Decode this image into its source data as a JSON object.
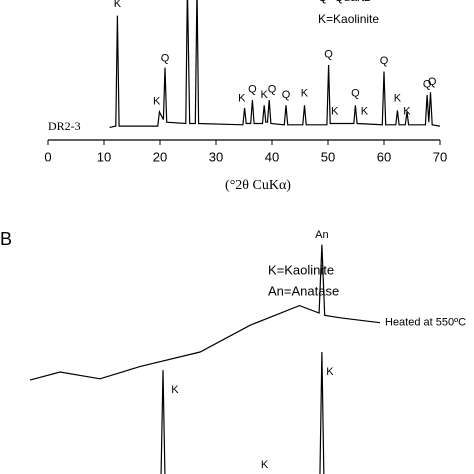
{
  "chart_data": [
    {
      "type": "line",
      "legend": [
        "Q=Quartz",
        "K=Kaolinite"
      ],
      "xlabel": "(°2θ CuKα)",
      "xlim": [
        0,
        70
      ],
      "ylim": [
        0,
        100
      ],
      "xticks": [
        0,
        10,
        20,
        30,
        40,
        50,
        60,
        70
      ],
      "series": [
        {
          "name": "DR2-3",
          "color": "#000000",
          "x": [
            11.0,
            12.1,
            12.4,
            12.7,
            19.6,
            19.9,
            20.6,
            20.9,
            21.2,
            24.6,
            24.9,
            25.3,
            26.3,
            26.6,
            26.9,
            34.8,
            35.1,
            35.4,
            36.2,
            36.5,
            36.8,
            38.3,
            38.6,
            38.9,
            39.2,
            39.5,
            39.8,
            42.2,
            42.5,
            42.8,
            45.5,
            45.8,
            46.1,
            49.8,
            50.1,
            50.4,
            54.6,
            54.9,
            55.2,
            59.7,
            60.0,
            60.3,
            62.1,
            62.4,
            62.7,
            63.8,
            64.1,
            64.4,
            67.4,
            67.7,
            68.0,
            68.3,
            68.6,
            70.0
          ],
          "values": [
            2,
            3,
            88,
            3,
            3,
            14,
            8,
            48,
            6,
            5,
            110,
            5,
            5,
            110,
            5,
            4,
            17,
            5,
            5,
            23,
            5,
            5,
            19,
            6,
            6,
            23,
            5,
            4,
            19,
            4,
            4,
            19,
            4,
            4,
            50,
            5,
            5,
            19,
            5,
            4,
            45,
            4,
            4,
            15,
            4,
            4,
            14,
            4,
            4,
            27,
            6,
            29,
            4,
            3
          ]
        }
      ],
      "annotations": [
        {
          "text": "K",
          "x": 12.4,
          "y": 97
        },
        {
          "text": "K",
          "x": 19.4,
          "y": 22
        },
        {
          "text": "Q",
          "x": 20.9,
          "y": 55
        },
        {
          "text": "K",
          "x": 34.6,
          "y": 24
        },
        {
          "text": "Q",
          "x": 36.5,
          "y": 31
        },
        {
          "text": "K",
          "x": 38.6,
          "y": 27
        },
        {
          "text": "Q",
          "x": 40.0,
          "y": 31
        },
        {
          "text": "Q",
          "x": 42.5,
          "y": 27
        },
        {
          "text": "K",
          "x": 45.8,
          "y": 28
        },
        {
          "text": "Q",
          "x": 50.1,
          "y": 58
        },
        {
          "text": "K",
          "x": 51.2,
          "y": 14
        },
        {
          "text": "Q",
          "x": 54.9,
          "y": 28
        },
        {
          "text": "K",
          "x": 56.5,
          "y": 14
        },
        {
          "text": "Q",
          "x": 60.0,
          "y": 53
        },
        {
          "text": "K",
          "x": 62.4,
          "y": 24
        },
        {
          "text": "K",
          "x": 64.1,
          "y": 14
        },
        {
          "text": "Q",
          "x": 67.7,
          "y": 35
        },
        {
          "text": "Q",
          "x": 68.6,
          "y": 37
        }
      ]
    },
    {
      "type": "line",
      "panel_label": "B",
      "legend": [
        "K=Kaolinite",
        "An=Anatase"
      ],
      "xlim": [
        0,
        100
      ],
      "ylim": [
        0,
        100
      ],
      "series": [
        {
          "name": "Heated at 550ºC",
          "color": "#000000",
          "x": [
            0,
            8.6,
            20,
            31.4,
            48.6,
            62.9,
            77,
            82.6,
            83.4,
            84.2,
            88.6,
            100
          ],
          "values": [
            38.5,
            41.8,
            39,
            44,
            50,
            61,
            69,
            66,
            94,
            65,
            64,
            62
          ]
        },
        {
          "color": "#000000",
          "x": [
            34,
            37.4,
            38,
            38.6,
            42,
            78,
            82.8,
            83.4,
            84,
            88
          ],
          "values": [
            -5,
            -4,
            42.6,
            -4,
            -5,
            -5,
            -4,
            50,
            -4,
            -5
          ]
        }
      ],
      "annotations": [
        {
          "text": "An",
          "x": 83.4,
          "y": 98
        },
        {
          "text": "K",
          "x": 41.4,
          "y": 34.4
        },
        {
          "text": "K",
          "x": 85.7,
          "y": 41.8
        },
        {
          "text": "K",
          "x": 67,
          "y": 3.7
        }
      ]
    }
  ]
}
